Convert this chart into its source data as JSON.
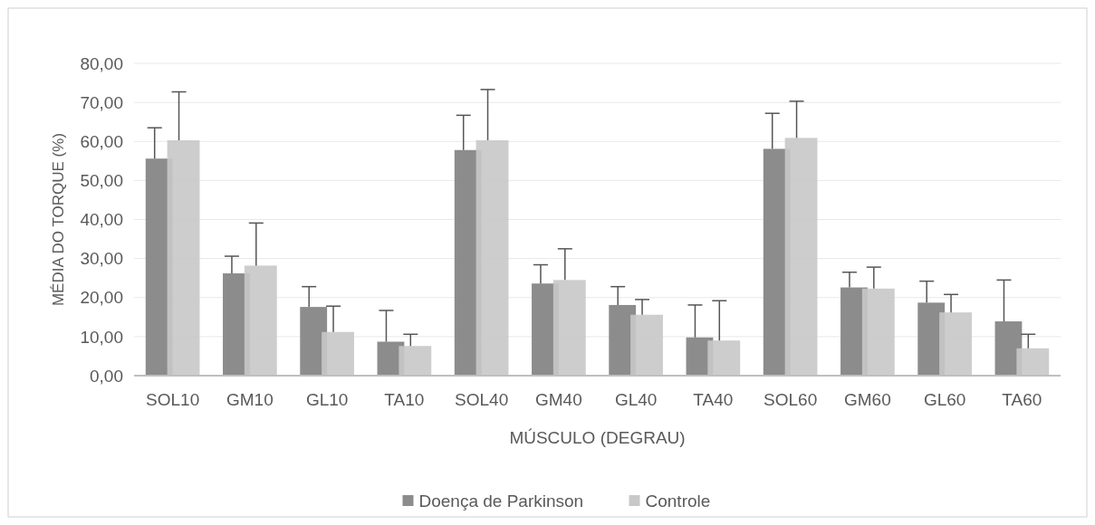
{
  "chart_data": {
    "type": "bar",
    "xlabel": "MÚSCULO (DEGRAU)",
    "ylabel": "MÉDIA DO TORQUE (%)",
    "categories": [
      "SOL10",
      "GM10",
      "GL10",
      "TA10",
      "SOL40",
      "GM40",
      "GL40",
      "TA40",
      "SOL60",
      "GM60",
      "GL60",
      "TA60"
    ],
    "series": [
      {
        "name": "Doença de Parkinson",
        "color": "#8c8c8c",
        "values": [
          55.6,
          26.2,
          17.6,
          8.7,
          57.8,
          23.6,
          18.1,
          9.8,
          58.1,
          22.6,
          18.7,
          13.9
        ],
        "errors": [
          [
            55.6,
            63.5
          ],
          [
            26.2,
            30.6
          ],
          [
            17.6,
            22.8
          ],
          [
            8.7,
            16.7
          ],
          [
            57.8,
            66.7
          ],
          [
            23.6,
            28.4
          ],
          [
            18.1,
            22.8
          ],
          [
            9.8,
            18.1
          ],
          [
            58.1,
            67.2
          ],
          [
            22.6,
            26.5
          ],
          [
            18.7,
            24.2
          ],
          [
            13.9,
            24.5
          ]
        ]
      },
      {
        "name": "Controle",
        "color": "#c8c8c8",
        "values": [
          60.3,
          28.2,
          11.2,
          7.6,
          60.3,
          24.5,
          15.6,
          9.0,
          60.9,
          22.3,
          16.2,
          7.0
        ],
        "errors": [
          [
            60.3,
            72.7
          ],
          [
            28.2,
            39.1
          ],
          [
            11.2,
            17.8
          ],
          [
            7.6,
            10.6
          ],
          [
            60.3,
            73.3
          ],
          [
            24.5,
            32.5
          ],
          [
            15.6,
            19.5
          ],
          [
            9.0,
            19.2
          ],
          [
            60.9,
            70.3
          ],
          [
            22.3,
            27.8
          ],
          [
            16.2,
            20.8
          ],
          [
            7.0,
            10.6
          ]
        ]
      }
    ],
    "ylim": [
      0,
      80
    ],
    "yticks": [
      {
        "value": 0,
        "label": "0,00"
      },
      {
        "value": 10,
        "label": "10,00"
      },
      {
        "value": 20,
        "label": "20,00"
      },
      {
        "value": 30,
        "label": "30,00"
      },
      {
        "value": 40,
        "label": "40,00"
      },
      {
        "value": 50,
        "label": "50,00"
      },
      {
        "value": 60,
        "label": "60,00"
      },
      {
        "value": 70,
        "label": "70,00"
      },
      {
        "value": 80,
        "label": "80,00"
      }
    ],
    "grid": "y",
    "legend": "bottom"
  }
}
